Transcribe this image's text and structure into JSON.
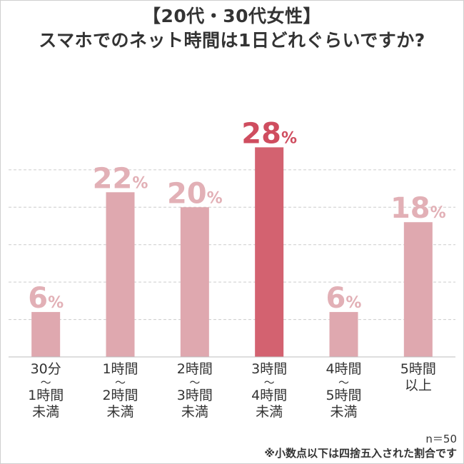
{
  "title": {
    "line1": "【20代・30代女性】",
    "line2": "スマホでのネット時間は1日どれぐらいですか?"
  },
  "notes": {
    "sample": "n＝50",
    "rounding": "※小数点以下は四捨五入された割合です"
  },
  "colors": {
    "bar": "#dfa8af",
    "bar_highlight": "#d36270",
    "label": "#e2b0b6",
    "label_highlight": "#cf4d5f",
    "grid": "#cccccc"
  },
  "chart_data": {
    "type": "bar",
    "title": "【20代・30代女性】スマホでのネット時間は1日どれぐらいですか?",
    "unit": "%",
    "categories": [
      [
        "30分",
        "〜",
        "1時間",
        "未満"
      ],
      [
        "1時間",
        "〜",
        "2時間",
        "未満"
      ],
      [
        "2時間",
        "〜",
        "3時間",
        "未満"
      ],
      [
        "3時間",
        "〜",
        "4時間",
        "未満"
      ],
      [
        "4時間",
        "〜",
        "5時間",
        "未満"
      ],
      [
        "5時間",
        "以上"
      ]
    ],
    "values": [
      6,
      22,
      20,
      28,
      6,
      18
    ],
    "highlight_index": 3,
    "ylim": [
      0,
      37
    ],
    "grid": true
  }
}
